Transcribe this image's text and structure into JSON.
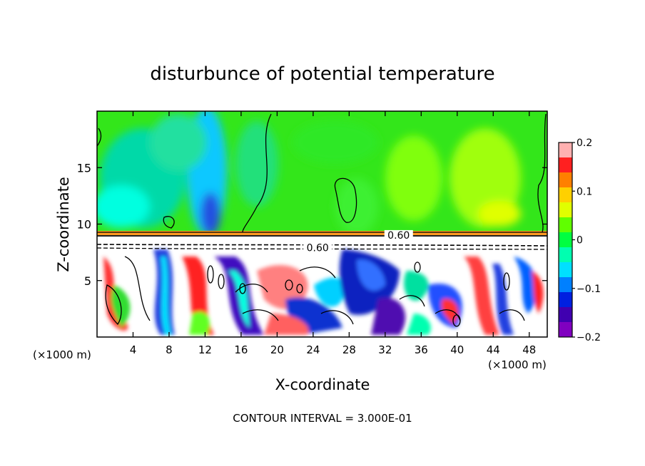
{
  "chart_data": {
    "type": "heatmap",
    "title": "disturbunce of potential temperature",
    "xlabel": "X-coordinate",
    "ylabel": "Z-coordinate",
    "x_unit_left": "(×1000 m)",
    "x_unit_right": "(×1000 m)",
    "xlim": [
      0,
      50
    ],
    "ylim": [
      0,
      20
    ],
    "x_ticks": [
      4,
      8,
      12,
      16,
      20,
      24,
      28,
      32,
      36,
      40,
      44,
      48
    ],
    "y_ticks": [
      5,
      10,
      15
    ],
    "colorbar": {
      "range": [
        -0.2,
        0.2
      ],
      "tick_values": [
        0.2,
        0.1,
        0,
        -0.1,
        -0.2
      ],
      "tick_labels": [
        "0.2",
        "0.1",
        "0",
        "−0.1",
        "−0.2"
      ],
      "colors": [
        "#ffb0b0",
        "#ff2020",
        "#ff8000",
        "#ffd000",
        "#e0ff00",
        "#60ff00",
        "#00ff40",
        "#00ffb0",
        "#00e0ff",
        "#0080ff",
        "#0020e0",
        "#4000b0",
        "#8000c0"
      ]
    },
    "contour_labels": [
      {
        "text": "0.60",
        "x": 33.5,
        "y": 8.9
      },
      {
        "text": "0.60",
        "x": 24.5,
        "y": 7.8
      }
    ],
    "footnote": "CONTOUR INTERVAL = 3.000E-01"
  }
}
